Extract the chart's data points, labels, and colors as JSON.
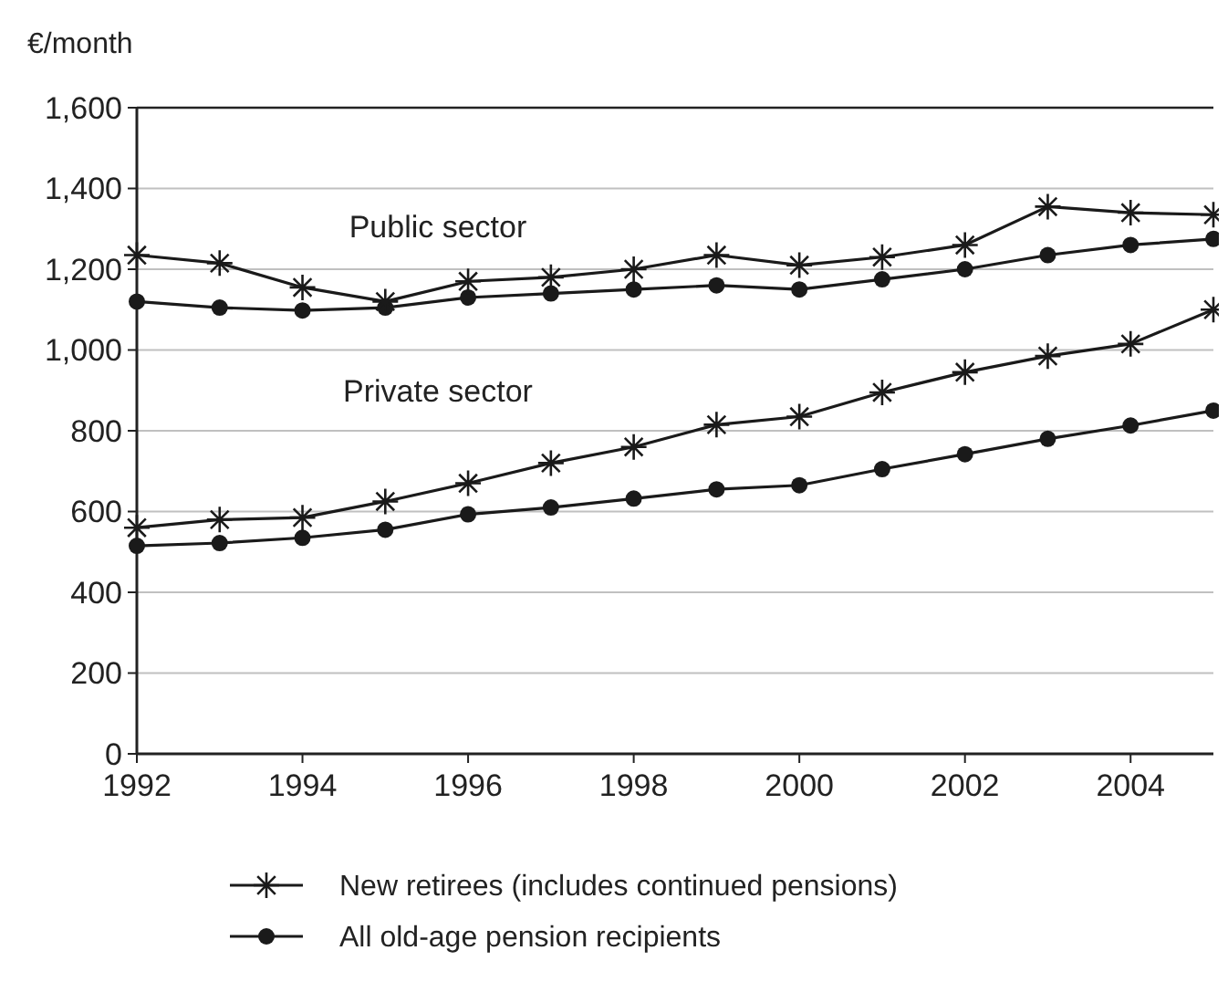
{
  "chart_data": {
    "type": "line",
    "ylabel": "€/month",
    "x": [
      1992,
      1993,
      1994,
      1995,
      1996,
      1997,
      1998,
      1999,
      2000,
      2001,
      2002,
      2003,
      2004,
      2005
    ],
    "xlim": [
      1992,
      2005
    ],
    "xticks": [
      1992,
      1994,
      1996,
      1998,
      2000,
      2002,
      2004
    ],
    "ylim": [
      0,
      1600
    ],
    "yticks": [
      {
        "value": 0,
        "label": "0"
      },
      {
        "value": 200,
        "label": "200"
      },
      {
        "value": 400,
        "label": "400"
      },
      {
        "value": 600,
        "label": "600"
      },
      {
        "value": 800,
        "label": "800"
      },
      {
        "value": 1000,
        "label": "1,000"
      },
      {
        "value": 1200,
        "label": "1,200"
      },
      {
        "value": 1400,
        "label": "1,400"
      },
      {
        "value": 1600,
        "label": "1,600"
      }
    ],
    "grid": "y",
    "legend": "bottom",
    "line_style": "solid",
    "series": [
      {
        "name": "New retirees (includes continued pensions)",
        "color": "#1a1a1a",
        "marker": "cross",
        "values": [
          1235,
          1215,
          1155,
          1120,
          1170,
          1180,
          1200,
          1235,
          1210,
          1230,
          1260,
          1355,
          1340,
          1335
        ]
      },
      {
        "name": "All old-age pension recipients",
        "color": "#1a1a1a",
        "marker": "circle",
        "values": [
          1120,
          1105,
          1098,
          1105,
          1130,
          1140,
          1150,
          1160,
          1150,
          1175,
          1200,
          1235,
          1260,
          1275
        ]
      },
      {
        "color": "#1a1a1a",
        "marker": "cross",
        "values": [
          560,
          580,
          585,
          625,
          670,
          720,
          760,
          815,
          835,
          895,
          945,
          985,
          1015,
          1100
        ]
      },
      {
        "color": "#1a1a1a",
        "marker": "circle",
        "values": [
          515,
          522,
          535,
          555,
          593,
          610,
          632,
          655,
          665,
          705,
          742,
          780,
          813,
          850
        ]
      }
    ],
    "annotations": [
      "Public sector",
      "Private sector"
    ]
  }
}
